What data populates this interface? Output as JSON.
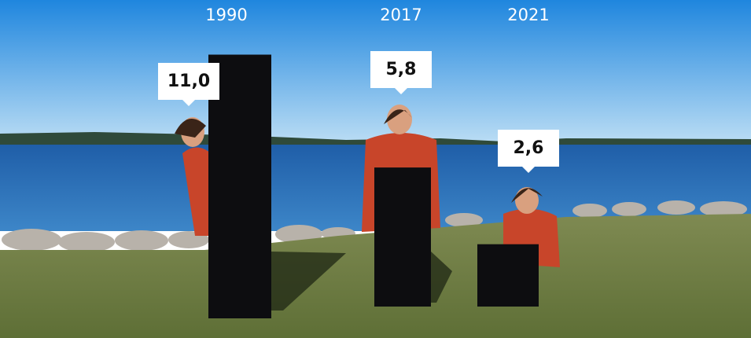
{
  "chart_data": {
    "type": "bar",
    "categories": [
      "1990",
      "2017",
      "2021"
    ],
    "values": [
      11.0,
      5.8,
      2.6
    ],
    "value_labels": [
      "11,0",
      "5,8",
      "2,6"
    ],
    "color": "#0d0d10"
  }
}
